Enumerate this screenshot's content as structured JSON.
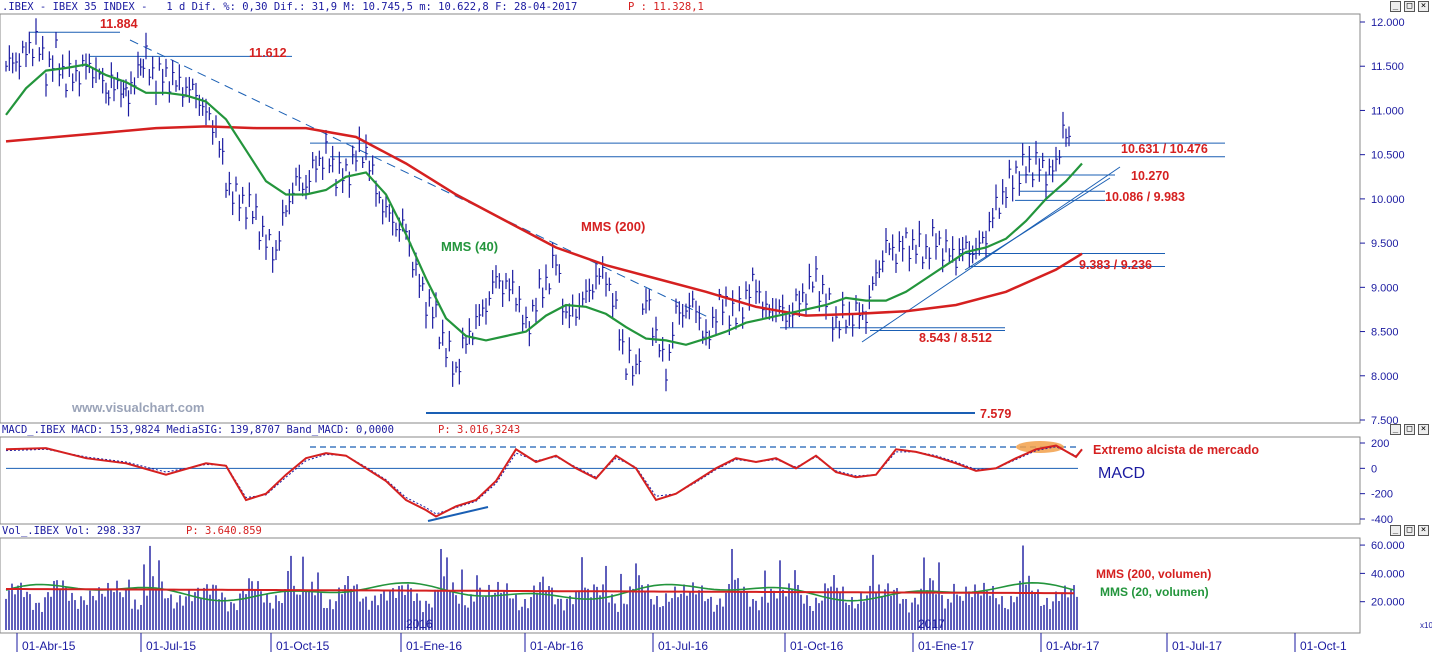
{
  "header": {
    "main": ".IBEX - IBEX 35 INDEX -   1 d Dif. %: 0,30 Dif.: 31,9 M: 10.745,5 m: 10.622,8 F: 28-04-2017",
    "main_p": "P : 11.328,1",
    "macd": "MACD_.IBEX MACD: 153,9824 MediaSIG: 139,8707 Band_MACD: 0,0000",
    "macd_p": "P: 3.016,3243",
    "vol": "Vol_.IBEX Vol: 298.337",
    "vol_p": "P: 3.640.859"
  },
  "window_buttons": [
    "_",
    "□",
    "×"
  ],
  "watermark": "www.visualchart.com",
  "chart_data": [
    {
      "type": "line",
      "panel": "price",
      "title": "IBEX 35 INDEX",
      "ylim": [
        7500,
        12000
      ],
      "y_ticks": [
        "12.000",
        "11.500",
        "11.000",
        "10.500",
        "10.000",
        "9.500",
        "9.000",
        "8.500",
        "8.000",
        "7.500"
      ],
      "x_labels": [
        "01-Abr-15",
        "01-Jul-15",
        "01-Oct-15",
        "01-Ene-16",
        "01-Abr-16",
        "01-Jul-16",
        "01-Oct-16",
        "01-Ene-17",
        "01-Abr-17",
        "01-Jul-17",
        "01-Oct-1"
      ],
      "year_markers": [
        "2016",
        "2017"
      ],
      "series": [
        {
          "name": "IBEX",
          "color": "#1a1aa0",
          "x": [
            0,
            10,
            20,
            30,
            40,
            50,
            60,
            70,
            80,
            90,
            100,
            108,
            115,
            120,
            125,
            132,
            140,
            150,
            160,
            170,
            180,
            190,
            200,
            210,
            220,
            230,
            240,
            250,
            260,
            270,
            280,
            290,
            300,
            310,
            320,
            330,
            340,
            350,
            360,
            370,
            380,
            390,
            400,
            410,
            420,
            430,
            440,
            450,
            460,
            470,
            480,
            490,
            500,
            510,
            520,
            530,
            540,
            550,
            560,
            570,
            580,
            590,
            600,
            610,
            620,
            630,
            640,
            650,
            660,
            670,
            680,
            690,
            700,
            710,
            720,
            730,
            740,
            750,
            760,
            770,
            780,
            790,
            800,
            810,
            820,
            830,
            840,
            850,
            860,
            870,
            880,
            890,
            900,
            910,
            920,
            930,
            940,
            950,
            960,
            970,
            980,
            990,
            1000,
            1010,
            1020,
            1030,
            1040,
            1050,
            1057,
            1060,
            1066
          ],
          "y": [
            11500,
            11560,
            11650,
            11800,
            11450,
            11620,
            11350,
            11400,
            11500,
            11450,
            11220,
            11340,
            11250,
            11200,
            11300,
            11380,
            11550,
            11350,
            11400,
            11300,
            11250,
            11200,
            10950,
            10800,
            10200,
            10000,
            9950,
            9800,
            9500,
            9400,
            9900,
            10200,
            10150,
            10400,
            10500,
            10300,
            10250,
            10500,
            10550,
            10100,
            9850,
            9700,
            9650,
            9150,
            8850,
            8650,
            8300,
            8050,
            8400,
            8600,
            8800,
            9100,
            9000,
            8950,
            8500,
            8850,
            9050,
            9300,
            8650,
            8750,
            8900,
            9100,
            9150,
            8700,
            8150,
            8050,
            8900,
            8450,
            8050,
            8700,
            8750,
            8800,
            8350,
            8750,
            8800,
            8650,
            8900,
            9050,
            8700,
            8800,
            8650,
            8800,
            8950,
            9100,
            8850,
            8600,
            8650,
            8700,
            8700,
            9150,
            9450,
            9400,
            9500,
            9450,
            9400,
            9550,
            9400,
            9350,
            9450,
            9400,
            9600,
            9900,
            10100,
            10300,
            10350,
            10400,
            10300,
            10350,
            10800,
            10700,
            10700
          ]
        },
        {
          "name": "MMS (40)",
          "color": "#23953c",
          "x": [
            0,
            20,
            40,
            60,
            80,
            100,
            120,
            140,
            160,
            180,
            200,
            220,
            240,
            260,
            280,
            300,
            320,
            340,
            360,
            380,
            400,
            420,
            440,
            460,
            480,
            500,
            520,
            540,
            560,
            580,
            600,
            620,
            640,
            660,
            680,
            700,
            720,
            740,
            760,
            780,
            800,
            820,
            840,
            860,
            880,
            900,
            920,
            940,
            960,
            980,
            1000,
            1020,
            1040,
            1060,
            1076
          ],
          "y": [
            10950,
            11250,
            11450,
            11480,
            11520,
            11400,
            11320,
            11200,
            11200,
            11170,
            11100,
            10900,
            10550,
            10200,
            10050,
            10050,
            10100,
            10250,
            10300,
            10050,
            9600,
            9100,
            8650,
            8450,
            8400,
            8450,
            8500,
            8680,
            8800,
            8780,
            8700,
            8550,
            8420,
            8400,
            8350,
            8420,
            8500,
            8600,
            8650,
            8700,
            8750,
            8800,
            8880,
            8850,
            8850,
            8950,
            9100,
            9250,
            9400,
            9450,
            9550,
            9750,
            10000,
            10200,
            10400
          ]
        },
        {
          "name": "MMS (200)",
          "color": "#d52020",
          "x": [
            0,
            50,
            100,
            150,
            200,
            250,
            300,
            350,
            400,
            450,
            500,
            550,
            600,
            650,
            700,
            750,
            800,
            850,
            900,
            950,
            1000,
            1050,
            1076
          ],
          "y": [
            10650,
            10700,
            10750,
            10800,
            10820,
            10800,
            10800,
            10700,
            10400,
            10050,
            9750,
            9450,
            9250,
            9100,
            8950,
            8780,
            8680,
            8700,
            8730,
            8800,
            8950,
            9200,
            9380
          ]
        }
      ],
      "levels": [
        {
          "label": "11.884",
          "value": 11884,
          "color": "#d52020"
        },
        {
          "label": "11.612",
          "value": 11612,
          "color": "#d52020"
        },
        {
          "label": "10.631 / 10.476",
          "value": 10631,
          "color": "#d52020"
        },
        {
          "label": "10.270",
          "value": 10270,
          "color": "#d52020"
        },
        {
          "label": "10.086 / 9.983",
          "value": 10086,
          "color": "#d52020"
        },
        {
          "label": "9.383 / 9.236",
          "value": 9383,
          "color": "#d52020"
        },
        {
          "label": "8.543 / 8.512",
          "value": 8543,
          "color": "#d52020"
        },
        {
          "label": "7.579",
          "value": 7579,
          "color": "#d52020"
        }
      ],
      "annotations": [
        "MMS (200)",
        "MMS (40)"
      ]
    },
    {
      "type": "line",
      "panel": "macd",
      "ylim": [
        -400,
        200
      ],
      "y_ticks": [
        "200",
        "0",
        "-200",
        "-400"
      ],
      "annotations": [
        "Extremo alcista de mercado",
        "MACD"
      ],
      "series": [
        {
          "name": "MACD",
          "color": "#d52020",
          "x": [
            0,
            40,
            80,
            120,
            160,
            200,
            220,
            240,
            260,
            280,
            300,
            320,
            340,
            360,
            380,
            400,
            420,
            430,
            450,
            470,
            490,
            510,
            530,
            550,
            570,
            590,
            610,
            630,
            650,
            670,
            690,
            710,
            730,
            750,
            770,
            790,
            810,
            830,
            850,
            870,
            890,
            910,
            930,
            950,
            970,
            990,
            1010,
            1030,
            1050,
            1070,
            1076
          ],
          "y": [
            150,
            160,
            80,
            40,
            -50,
            40,
            20,
            -250,
            -200,
            -50,
            80,
            120,
            100,
            0,
            -100,
            -250,
            -330,
            -380,
            -300,
            -250,
            -100,
            150,
            50,
            100,
            0,
            -80,
            100,
            0,
            -250,
            -200,
            -100,
            0,
            80,
            50,
            80,
            0,
            100,
            -30,
            -70,
            -50,
            150,
            130,
            90,
            40,
            -20,
            0,
            80,
            150,
            180,
            90,
            150
          ]
        },
        {
          "name": "MediaSIG",
          "color": "#1a1aa0",
          "x": [
            0,
            40,
            80,
            120,
            160,
            200,
            220,
            240,
            260,
            280,
            300,
            320,
            340,
            360,
            380,
            400,
            420,
            430,
            450,
            470,
            490,
            510,
            530,
            550,
            570,
            590,
            610,
            630,
            650,
            670,
            690,
            710,
            730,
            750,
            770,
            790,
            810,
            830,
            850,
            870,
            890,
            910,
            930,
            950,
            970,
            990,
            1010,
            1030,
            1050,
            1070,
            1076
          ],
          "y": [
            140,
            150,
            90,
            50,
            -30,
            30,
            25,
            -230,
            -210,
            -70,
            60,
            110,
            100,
            10,
            -90,
            -230,
            -310,
            -360,
            -310,
            -260,
            -120,
            120,
            60,
            90,
            10,
            -70,
            80,
            10,
            -220,
            -200,
            -110,
            -10,
            70,
            50,
            70,
            10,
            90,
            -20,
            -60,
            -50,
            130,
            130,
            100,
            50,
            -10,
            0,
            70,
            140,
            170,
            100,
            140
          ]
        }
      ]
    },
    {
      "type": "bar",
      "panel": "volume",
      "ylim": [
        0,
        65000
      ],
      "y_ticks": [
        "60.000",
        "40.000",
        "20.000"
      ],
      "unit_badge": "x10",
      "series": [
        {
          "name": "MMS (200, volumen)",
          "color": "#d52020"
        },
        {
          "name": "MMS (20, volumen)",
          "color": "#23953c"
        }
      ]
    }
  ]
}
